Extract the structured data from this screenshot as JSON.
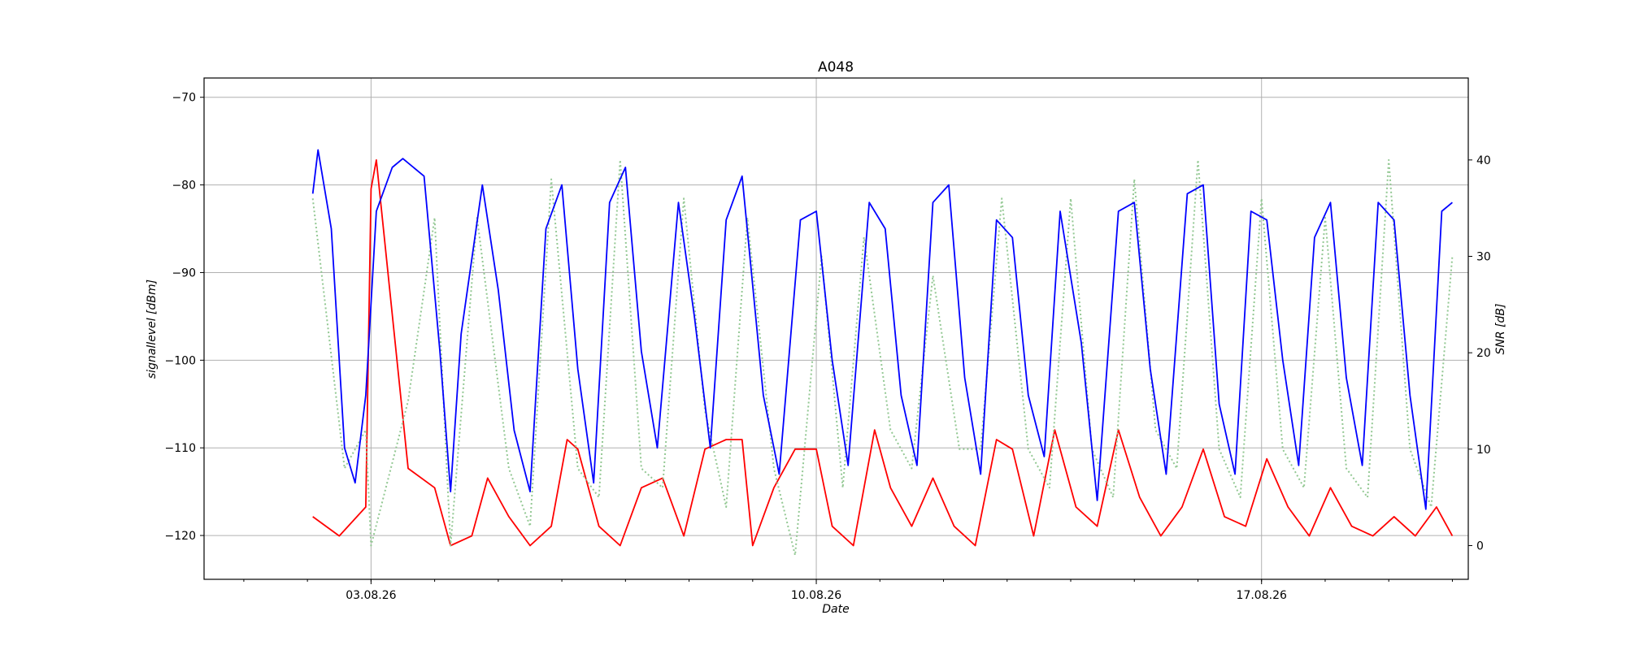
{
  "chart_data": {
    "type": "line",
    "title": "A048",
    "xlabel": "Date",
    "ylabel": "signallevel [dBm]",
    "y2label": "SNR [dB]",
    "x_tick_labels": [
      "03.08.26",
      "10.08.26",
      "17.08.26"
    ],
    "x_ticks": [
      "2026-08-03",
      "2026-08-10",
      "2026-08-17"
    ],
    "xlim": [
      "2026-07-31T09:00",
      "2026-08-20T06:00"
    ],
    "ylim": [
      -125,
      -67.8
    ],
    "y_ticks": [
      -120,
      -110,
      -100,
      -90,
      -80,
      -70
    ],
    "y2lim": [
      -3.5,
      48.5
    ],
    "y2_ticks": [
      0,
      10,
      20,
      30,
      40
    ],
    "grid": true,
    "series": [
      {
        "axis": "left",
        "color": "#0000ff",
        "style": "solid",
        "points": [
          [
            "2026-08-02T02:00",
            -81
          ],
          [
            "2026-08-02T04:00",
            -76
          ],
          [
            "2026-08-02T09:00",
            -85
          ],
          [
            "2026-08-02T14:00",
            -110
          ],
          [
            "2026-08-02T18:00",
            -114
          ],
          [
            "2026-08-02T22:00",
            -104
          ],
          [
            "2026-08-03T02:00",
            -83
          ],
          [
            "2026-08-03T08:00",
            -78
          ],
          [
            "2026-08-03T12:00",
            -77
          ],
          [
            "2026-08-03T20:00",
            -79
          ],
          [
            "2026-08-04T02:00",
            -99
          ],
          [
            "2026-08-04T06:00",
            -115
          ],
          [
            "2026-08-04T10:00",
            -97
          ],
          [
            "2026-08-04T18:00",
            -80
          ],
          [
            "2026-08-05T00:00",
            -92
          ],
          [
            "2026-08-05T06:00",
            -108
          ],
          [
            "2026-08-05T12:00",
            -115
          ],
          [
            "2026-08-05T18:00",
            -85
          ],
          [
            "2026-08-06T00:00",
            -80
          ],
          [
            "2026-08-06T06:00",
            -101
          ],
          [
            "2026-08-06T12:00",
            -114
          ],
          [
            "2026-08-06T18:00",
            -82
          ],
          [
            "2026-08-07T00:00",
            -78
          ],
          [
            "2026-08-07T06:00",
            -99
          ],
          [
            "2026-08-07T12:00",
            -110
          ],
          [
            "2026-08-07T20:00",
            -82
          ],
          [
            "2026-08-08T02:00",
            -95
          ],
          [
            "2026-08-08T08:00",
            -110
          ],
          [
            "2026-08-08T14:00",
            -84
          ],
          [
            "2026-08-08T20:00",
            -79
          ],
          [
            "2026-08-09T04:00",
            -104
          ],
          [
            "2026-08-09T10:00",
            -113
          ],
          [
            "2026-08-09T18:00",
            -84
          ],
          [
            "2026-08-10T00:00",
            -83
          ],
          [
            "2026-08-10T06:00",
            -100
          ],
          [
            "2026-08-10T12:00",
            -112
          ],
          [
            "2026-08-10T20:00",
            -82
          ],
          [
            "2026-08-11T02:00",
            -85
          ],
          [
            "2026-08-11T08:00",
            -104
          ],
          [
            "2026-08-11T14:00",
            -112
          ],
          [
            "2026-08-11T20:00",
            -82
          ],
          [
            "2026-08-12T02:00",
            -80
          ],
          [
            "2026-08-12T08:00",
            -102
          ],
          [
            "2026-08-12T14:00",
            -113
          ],
          [
            "2026-08-12T20:00",
            -84
          ],
          [
            "2026-08-13T02:00",
            -86
          ],
          [
            "2026-08-13T08:00",
            -104
          ],
          [
            "2026-08-13T14:00",
            -111
          ],
          [
            "2026-08-13T20:00",
            -83
          ],
          [
            "2026-08-14T04:00",
            -98
          ],
          [
            "2026-08-14T10:00",
            -116
          ],
          [
            "2026-08-14T18:00",
            -83
          ],
          [
            "2026-08-15T00:00",
            -82
          ],
          [
            "2026-08-15T06:00",
            -101
          ],
          [
            "2026-08-15T12:00",
            -113
          ],
          [
            "2026-08-15T20:00",
            -81
          ],
          [
            "2026-08-16T02:00",
            -80
          ],
          [
            "2026-08-16T08:00",
            -105
          ],
          [
            "2026-08-16T14:00",
            -113
          ],
          [
            "2026-08-16T20:00",
            -83
          ],
          [
            "2026-08-17T02:00",
            -84
          ],
          [
            "2026-08-17T08:00",
            -100
          ],
          [
            "2026-08-17T14:00",
            -112
          ],
          [
            "2026-08-17T20:00",
            -86
          ],
          [
            "2026-08-18T02:00",
            -82
          ],
          [
            "2026-08-18T08:00",
            -102
          ],
          [
            "2026-08-18T14:00",
            -112
          ],
          [
            "2026-08-18T20:00",
            -82
          ],
          [
            "2026-08-19T02:00",
            -84
          ],
          [
            "2026-08-19T08:00",
            -104
          ],
          [
            "2026-08-19T14:00",
            -117
          ],
          [
            "2026-08-19T20:00",
            -83
          ],
          [
            "2026-08-20T00:00",
            -82
          ]
        ]
      },
      {
        "axis": "right",
        "color": "#ff0000",
        "style": "solid",
        "points": [
          [
            "2026-08-02T02:00",
            3
          ],
          [
            "2026-08-02T12:00",
            1
          ],
          [
            "2026-08-02T22:00",
            4
          ],
          [
            "2026-08-03T00:00",
            37
          ],
          [
            "2026-08-03T02:00",
            40
          ],
          [
            "2026-08-03T14:00",
            8
          ],
          [
            "2026-08-04T00:00",
            6
          ],
          [
            "2026-08-04T06:00",
            0
          ],
          [
            "2026-08-04T14:00",
            1
          ],
          [
            "2026-08-04T20:00",
            7
          ],
          [
            "2026-08-05T04:00",
            3
          ],
          [
            "2026-08-05T12:00",
            0
          ],
          [
            "2026-08-05T20:00",
            2
          ],
          [
            "2026-08-06T02:00",
            11
          ],
          [
            "2026-08-06T06:00",
            10
          ],
          [
            "2026-08-06T14:00",
            2
          ],
          [
            "2026-08-06T22:00",
            0
          ],
          [
            "2026-08-07T06:00",
            6
          ],
          [
            "2026-08-07T14:00",
            7
          ],
          [
            "2026-08-07T22:00",
            1
          ],
          [
            "2026-08-08T06:00",
            10
          ],
          [
            "2026-08-08T14:00",
            11
          ],
          [
            "2026-08-08T20:00",
            11
          ],
          [
            "2026-08-09T00:00",
            0
          ],
          [
            "2026-08-09T08:00",
            6
          ],
          [
            "2026-08-09T16:00",
            10
          ],
          [
            "2026-08-10T00:00",
            10
          ],
          [
            "2026-08-10T06:00",
            2
          ],
          [
            "2026-08-10T14:00",
            0
          ],
          [
            "2026-08-10T22:00",
            12
          ],
          [
            "2026-08-11T04:00",
            6
          ],
          [
            "2026-08-11T12:00",
            2
          ],
          [
            "2026-08-11T20:00",
            7
          ],
          [
            "2026-08-12T04:00",
            2
          ],
          [
            "2026-08-12T12:00",
            0
          ],
          [
            "2026-08-12T20:00",
            11
          ],
          [
            "2026-08-13T02:00",
            10
          ],
          [
            "2026-08-13T10:00",
            1
          ],
          [
            "2026-08-13T18:00",
            12
          ],
          [
            "2026-08-14T02:00",
            4
          ],
          [
            "2026-08-14T10:00",
            2
          ],
          [
            "2026-08-14T18:00",
            12
          ],
          [
            "2026-08-15T02:00",
            5
          ],
          [
            "2026-08-15T10:00",
            1
          ],
          [
            "2026-08-15T18:00",
            4
          ],
          [
            "2026-08-16T02:00",
            10
          ],
          [
            "2026-08-16T10:00",
            3
          ],
          [
            "2026-08-16T18:00",
            2
          ],
          [
            "2026-08-17T02:00",
            9
          ],
          [
            "2026-08-17T10:00",
            4
          ],
          [
            "2026-08-17T18:00",
            1
          ],
          [
            "2026-08-18T02:00",
            6
          ],
          [
            "2026-08-18T10:00",
            2
          ],
          [
            "2026-08-18T18:00",
            1
          ],
          [
            "2026-08-19T02:00",
            3
          ],
          [
            "2026-08-19T10:00",
            1
          ],
          [
            "2026-08-19T18:00",
            4
          ],
          [
            "2026-08-20T00:00",
            1
          ]
        ]
      },
      {
        "axis": "right",
        "color": "#93c893",
        "style": "dotted",
        "points": [
          [
            "2026-08-02T02:00",
            36
          ],
          [
            "2026-08-02T14:00",
            8
          ],
          [
            "2026-08-02T22:00",
            12
          ],
          [
            "2026-08-03T00:00",
            0
          ],
          [
            "2026-08-03T14:00",
            15
          ],
          [
            "2026-08-04T00:00",
            34
          ],
          [
            "2026-08-04T06:00",
            0
          ],
          [
            "2026-08-04T16:00",
            34
          ],
          [
            "2026-08-05T04:00",
            8
          ],
          [
            "2026-08-05T12:00",
            2
          ],
          [
            "2026-08-05T20:00",
            38
          ],
          [
            "2026-08-06T06:00",
            8
          ],
          [
            "2026-08-06T14:00",
            5
          ],
          [
            "2026-08-06T22:00",
            40
          ],
          [
            "2026-08-07T06:00",
            8
          ],
          [
            "2026-08-07T14:00",
            6
          ],
          [
            "2026-08-07T22:00",
            36
          ],
          [
            "2026-08-08T06:00",
            14
          ],
          [
            "2026-08-08T14:00",
            4
          ],
          [
            "2026-08-08T22:00",
            34
          ],
          [
            "2026-08-09T08:00",
            8
          ],
          [
            "2026-08-09T16:00",
            -1
          ],
          [
            "2026-08-10T02:00",
            30
          ],
          [
            "2026-08-10T10:00",
            6
          ],
          [
            "2026-08-10T18:00",
            32
          ],
          [
            "2026-08-11T04:00",
            12
          ],
          [
            "2026-08-11T12:00",
            8
          ],
          [
            "2026-08-11T20:00",
            28
          ],
          [
            "2026-08-12T06:00",
            10
          ],
          [
            "2026-08-12T14:00",
            10
          ],
          [
            "2026-08-12T22:00",
            36
          ],
          [
            "2026-08-13T08:00",
            10
          ],
          [
            "2026-08-13T16:00",
            6
          ],
          [
            "2026-08-14T00:00",
            36
          ],
          [
            "2026-08-14T08:00",
            10
          ],
          [
            "2026-08-14T16:00",
            5
          ],
          [
            "2026-08-15T00:00",
            38
          ],
          [
            "2026-08-15T08:00",
            12
          ],
          [
            "2026-08-15T16:00",
            8
          ],
          [
            "2026-08-16T00:00",
            40
          ],
          [
            "2026-08-16T08:00",
            10
          ],
          [
            "2026-08-16T16:00",
            5
          ],
          [
            "2026-08-17T00:00",
            36
          ],
          [
            "2026-08-17T08:00",
            10
          ],
          [
            "2026-08-17T16:00",
            6
          ],
          [
            "2026-08-18T00:00",
            34
          ],
          [
            "2026-08-18T08:00",
            8
          ],
          [
            "2026-08-18T16:00",
            5
          ],
          [
            "2026-08-19T00:00",
            40
          ],
          [
            "2026-08-19T08:00",
            10
          ],
          [
            "2026-08-19T16:00",
            4
          ],
          [
            "2026-08-20T00:00",
            30
          ]
        ]
      }
    ]
  }
}
